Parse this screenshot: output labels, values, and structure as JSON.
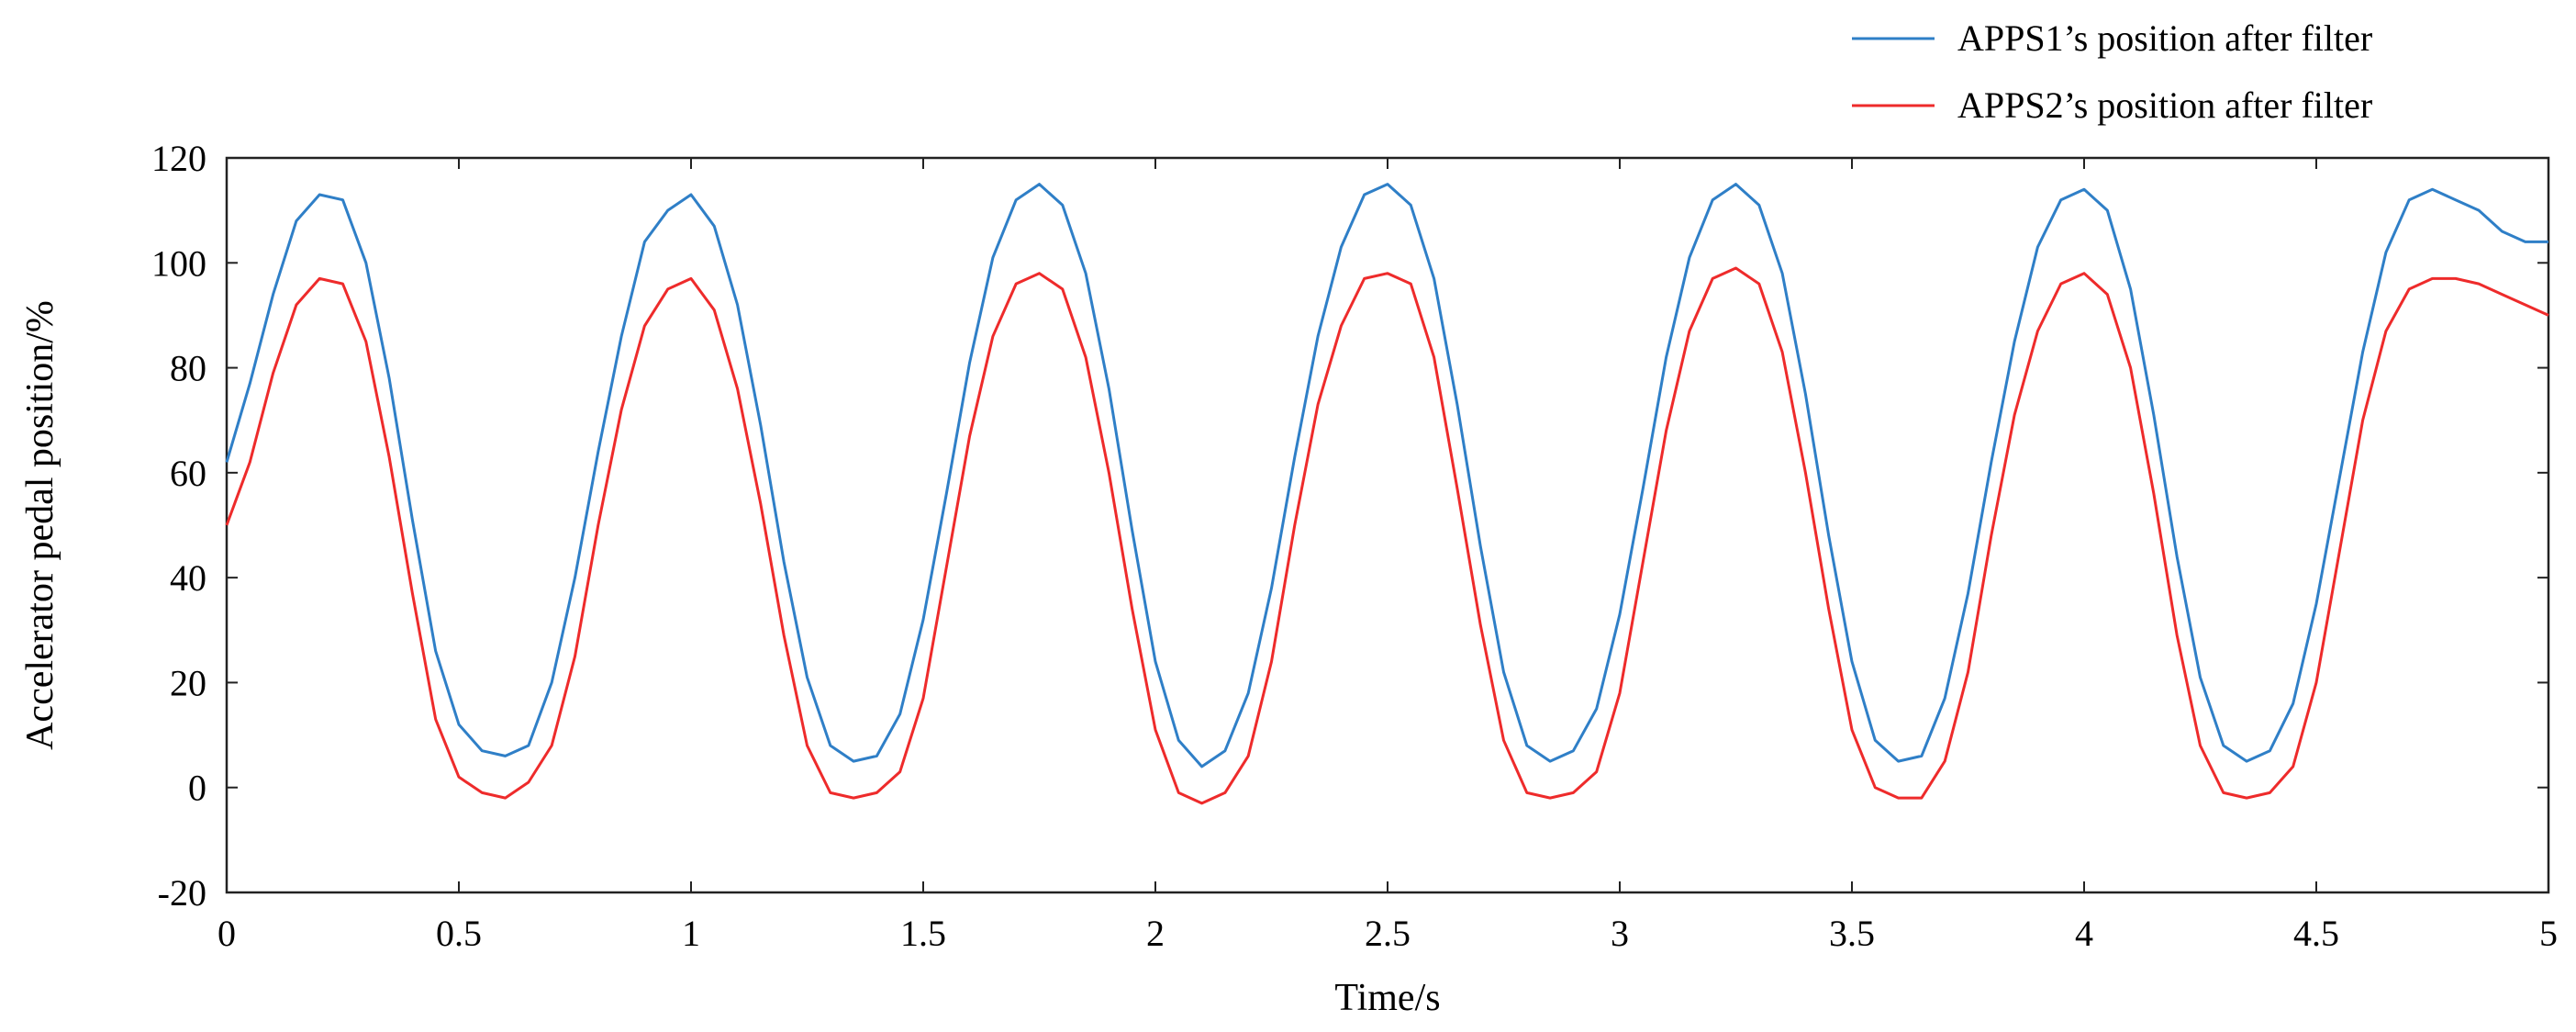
{
  "chart_data": {
    "type": "line",
    "title": "",
    "xlabel": "Time/s",
    "ylabel": "Accelerator pedal position/%",
    "xlim": [
      0,
      5
    ],
    "ylim": [
      -20,
      120
    ],
    "x_ticks": [
      0,
      0.5,
      1,
      1.5,
      2,
      2.5,
      3,
      3.5,
      4,
      4.5,
      5
    ],
    "x_tick_labels": [
      "0",
      "0.5",
      "1",
      "1.5",
      "2",
      "2.5",
      "3",
      "3.5",
      "4",
      "4.5",
      "5"
    ],
    "y_ticks": [
      -20,
      0,
      20,
      40,
      60,
      80,
      100,
      120
    ],
    "y_tick_labels": [
      "-20",
      "0",
      "20",
      "40",
      "60",
      "80",
      "100",
      "120"
    ],
    "grid": false,
    "legend_position": "top-right, outside above plot",
    "series": [
      {
        "name": "APPS1’s position after filter",
        "color": "#2f7fc7",
        "x": [
          0,
          0.05,
          0.1,
          0.15,
          0.2,
          0.25,
          0.3,
          0.35,
          0.4,
          0.45,
          0.5,
          0.55,
          0.6,
          0.65,
          0.7,
          0.75,
          0.8,
          0.85,
          0.9,
          0.95,
          1.0,
          1.05,
          1.1,
          1.15,
          1.2,
          1.25,
          1.3,
          1.35,
          1.4,
          1.45,
          1.5,
          1.55,
          1.6,
          1.65,
          1.7,
          1.75,
          1.8,
          1.85,
          1.9,
          1.95,
          2.0,
          2.05,
          2.1,
          2.15,
          2.2,
          2.25,
          2.3,
          2.35,
          2.4,
          2.45,
          2.5,
          2.55,
          2.6,
          2.65,
          2.7,
          2.75,
          2.8,
          2.85,
          2.9,
          2.95,
          3.0,
          3.05,
          3.1,
          3.15,
          3.2,
          3.25,
          3.3,
          3.35,
          3.4,
          3.45,
          3.5,
          3.55,
          3.6,
          3.65,
          3.7,
          3.75,
          3.8,
          3.85,
          3.9,
          3.95,
          4.0,
          4.05,
          4.1,
          4.15,
          4.2,
          4.25,
          4.3,
          4.35,
          4.4,
          4.45,
          4.5,
          4.55,
          4.6,
          4.65,
          4.7,
          4.75,
          4.8,
          4.85,
          4.9,
          4.95,
          5.0
        ],
        "values": [
          62,
          77,
          94,
          108,
          113,
          112,
          100,
          78,
          51,
          26,
          12,
          7,
          6,
          8,
          20,
          40,
          64,
          86,
          104,
          110,
          113,
          107,
          92,
          69,
          43,
          21,
          8,
          5,
          6,
          14,
          32,
          56,
          81,
          101,
          112,
          115,
          111,
          98,
          76,
          49,
          24,
          9,
          4,
          7,
          18,
          38,
          63,
          86,
          103,
          113,
          115,
          111,
          97,
          73,
          46,
          22,
          8,
          5,
          7,
          15,
          33,
          57,
          82,
          101,
          112,
          115,
          111,
          98,
          75,
          48,
          24,
          9,
          5,
          6,
          17,
          37,
          62,
          85,
          103,
          112,
          114,
          110,
          95,
          71,
          44,
          21,
          8,
          5,
          7,
          16,
          35,
          59,
          83,
          102,
          112,
          114,
          112,
          110,
          106,
          104,
          104
        ]
      },
      {
        "name": "APPS2’s position after filter",
        "color": "#ee2b2b",
        "x": [
          0,
          0.05,
          0.1,
          0.15,
          0.2,
          0.25,
          0.3,
          0.35,
          0.4,
          0.45,
          0.5,
          0.55,
          0.6,
          0.65,
          0.7,
          0.75,
          0.8,
          0.85,
          0.9,
          0.95,
          1.0,
          1.05,
          1.1,
          1.15,
          1.2,
          1.25,
          1.3,
          1.35,
          1.4,
          1.45,
          1.5,
          1.55,
          1.6,
          1.65,
          1.7,
          1.75,
          1.8,
          1.85,
          1.9,
          1.95,
          2.0,
          2.05,
          2.1,
          2.15,
          2.2,
          2.25,
          2.3,
          2.35,
          2.4,
          2.45,
          2.5,
          2.55,
          2.6,
          2.65,
          2.7,
          2.75,
          2.8,
          2.85,
          2.9,
          2.95,
          3.0,
          3.05,
          3.1,
          3.15,
          3.2,
          3.25,
          3.3,
          3.35,
          3.4,
          3.45,
          3.5,
          3.55,
          3.6,
          3.65,
          3.7,
          3.75,
          3.8,
          3.85,
          3.9,
          3.95,
          4.0,
          4.05,
          4.1,
          4.15,
          4.2,
          4.25,
          4.3,
          4.35,
          4.4,
          4.45,
          4.5,
          4.55,
          4.6,
          4.65,
          4.7,
          4.75,
          4.8,
          4.85,
          4.9,
          4.95,
          5.0
        ],
        "values": [
          50,
          62,
          79,
          92,
          97,
          96,
          85,
          63,
          37,
          13,
          2,
          -1,
          -2,
          1,
          8,
          25,
          50,
          72,
          88,
          95,
          97,
          91,
          76,
          54,
          29,
          8,
          -1,
          -2,
          -1,
          3,
          17,
          42,
          67,
          86,
          96,
          98,
          95,
          82,
          60,
          34,
          11,
          -1,
          -3,
          -1,
          6,
          24,
          50,
          73,
          88,
          97,
          98,
          96,
          82,
          57,
          31,
          9,
          -1,
          -2,
          -1,
          3,
          18,
          43,
          68,
          87,
          97,
          99,
          96,
          83,
          60,
          34,
          11,
          0,
          -2,
          -2,
          5,
          22,
          48,
          71,
          87,
          96,
          98,
          94,
          80,
          56,
          29,
          8,
          -1,
          -2,
          -1,
          4,
          20,
          45,
          70,
          87,
          95,
          97,
          97,
          96,
          94,
          92,
          90
        ]
      }
    ]
  }
}
